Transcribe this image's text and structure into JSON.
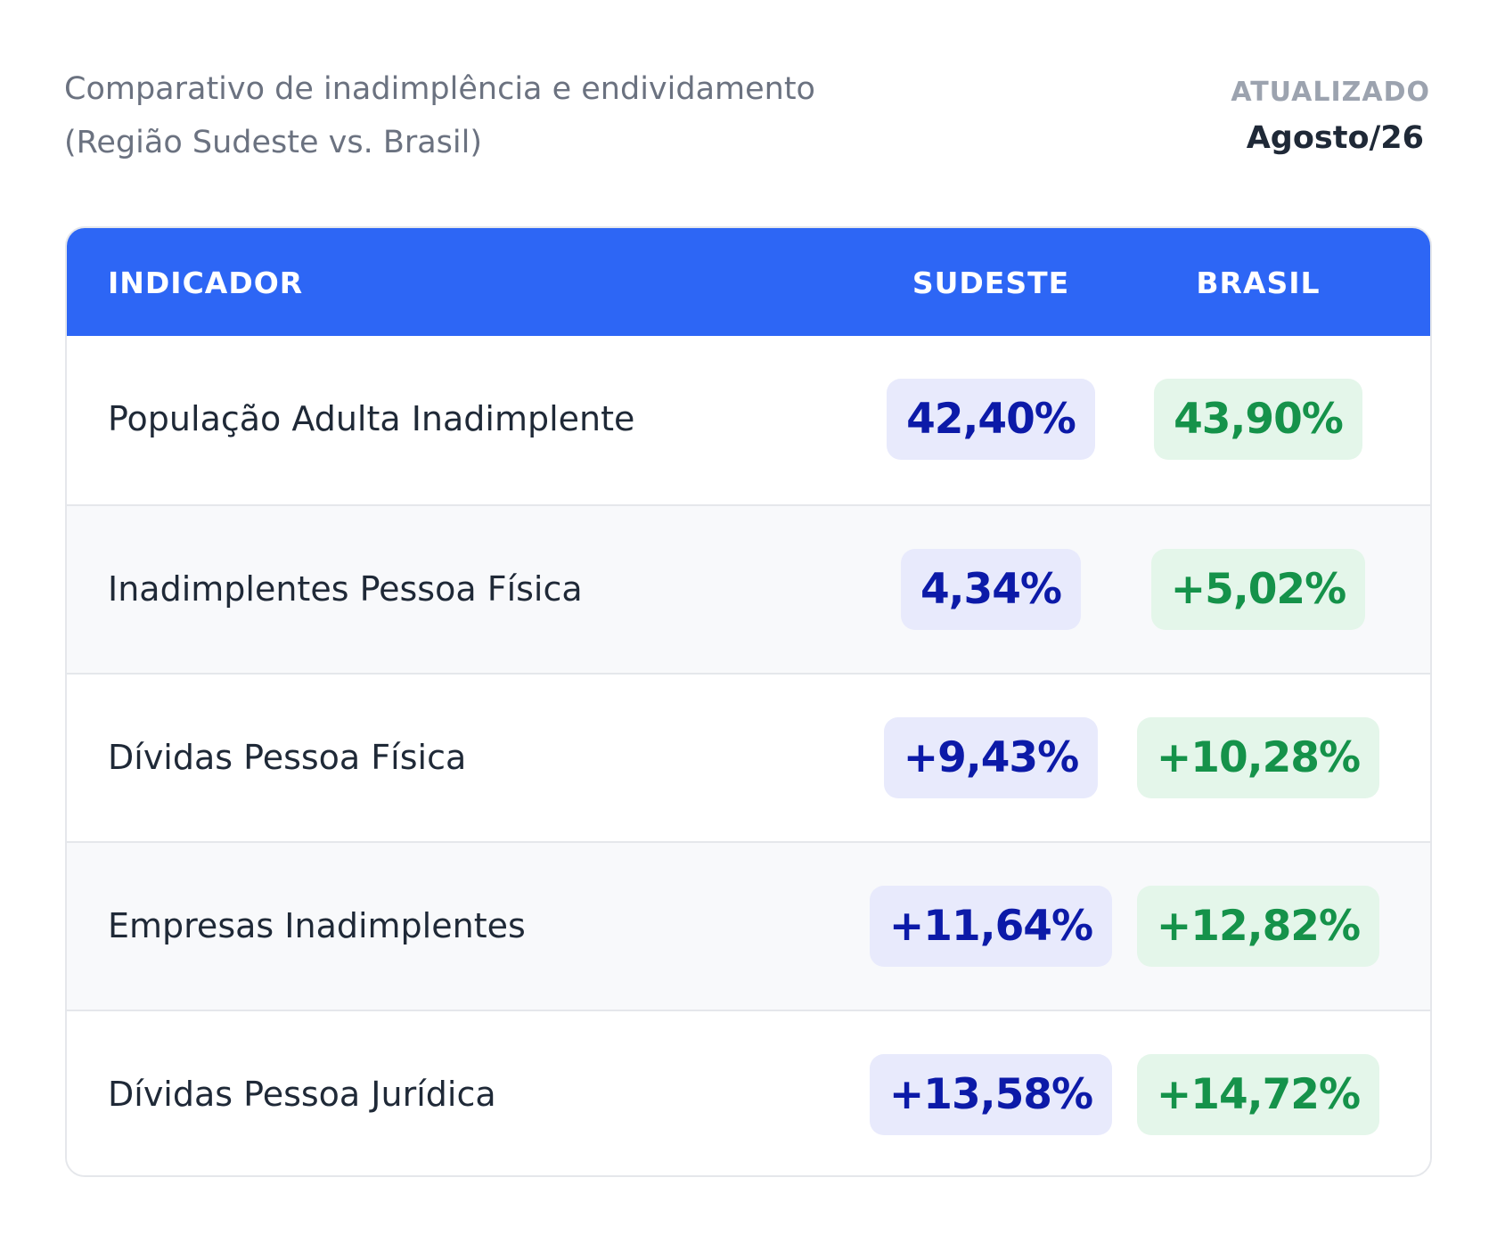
{
  "header": {
    "title": [
      "Comparativo de inadimplência e endividamento",
      "(Região Sudeste vs. Brasil)"
    ],
    "updated_label": "ATUALIZADO",
    "updated_date": "Agosto/26"
  },
  "table": {
    "columns": [
      "INDICADOR",
      "SUDESTE",
      "BRASIL"
    ],
    "rows": [
      [
        "População Adulta Inadimplente",
        "42,40%",
        "43,90%"
      ],
      [
        "Inadimplentes Pessoa Física",
        "4,34%",
        "+5,02%"
      ],
      [
        "Dívidas Pessoa Física",
        "+9,43%",
        "+10,28%"
      ],
      [
        "Empresas Inadimplentes",
        "+11,64%",
        "+12,82%"
      ],
      [
        "Dívidas Pessoa Jurídica",
        "+13,58%",
        "+14,72%"
      ]
    ]
  }
}
